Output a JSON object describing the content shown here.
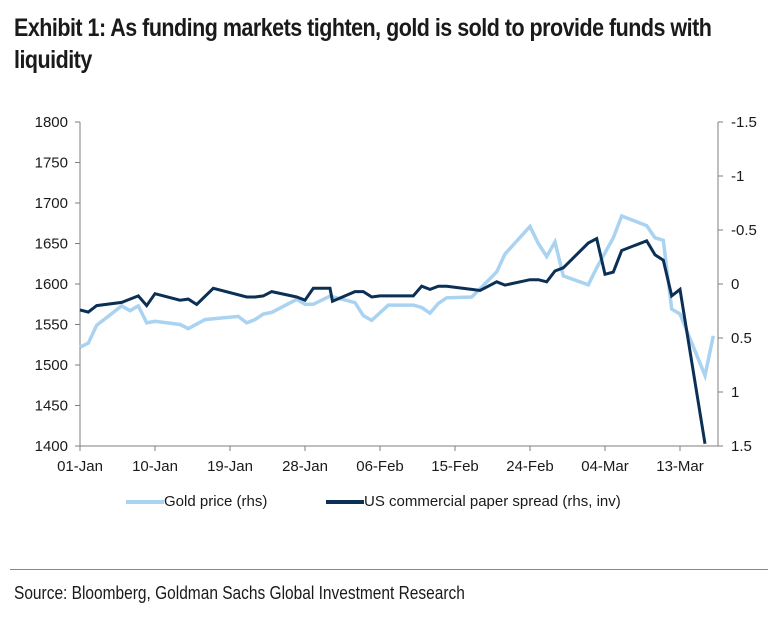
{
  "title": "Exhibit 1: As funding markets tighten, gold is sold to provide funds with liquidity",
  "source": "Source: Bloomberg, Goldman Sachs Global Investment Research",
  "colors": {
    "gold": "#a9d3f1",
    "cp": "#0b2f55",
    "axis": "#7f7f7f"
  },
  "legend": [
    {
      "label": "Gold price (rhs)",
      "color": "#a9d3f1"
    },
    {
      "label": "US commercial paper spread (rhs, inv)",
      "color": "#0b2f55"
    }
  ],
  "chart_data": {
    "type": "line",
    "title": "Exhibit 1: As funding markets tighten, gold is sold to provide funds with liquidity",
    "xlabel": "",
    "ylabel_left": "",
    "ylabel_right": "",
    "x_tick_labels": [
      "01-Jan",
      "10-Jan",
      "19-Jan",
      "28-Jan",
      "06-Feb",
      "15-Feb",
      "24-Feb",
      "04-Mar",
      "13-Mar"
    ],
    "x_range_days_from_jan1": [
      0,
      76.5
    ],
    "left_axis": {
      "ylim": [
        1400,
        1800
      ],
      "ticks": [
        "1800",
        "1750",
        "1700",
        "1650",
        "1600",
        "1550",
        "1500",
        "1450",
        "1400"
      ]
    },
    "right_axis": {
      "ylim": [
        -1.5,
        1.5
      ],
      "inverted": true,
      "ticks": [
        "-1.5",
        "-1",
        "-0.5",
        "0",
        "0.5",
        "1",
        "1.5"
      ]
    },
    "grid": false,
    "legend_position": "bottom",
    "series": [
      {
        "name": "Gold price (rhs)",
        "axis": "left",
        "points": [
          [
            0,
            1522
          ],
          [
            1,
            1527
          ],
          [
            2,
            1549
          ],
          [
            5,
            1573
          ],
          [
            6,
            1567
          ],
          [
            7,
            1573
          ],
          [
            8,
            1552
          ],
          [
            9,
            1554
          ],
          [
            12,
            1550
          ],
          [
            13,
            1545
          ],
          [
            15,
            1556
          ],
          [
            16,
            1557
          ],
          [
            19,
            1560
          ],
          [
            20,
            1552
          ],
          [
            21,
            1556
          ],
          [
            22,
            1563
          ],
          [
            23,
            1565
          ],
          [
            26,
            1581
          ],
          [
            27,
            1575
          ],
          [
            28,
            1575
          ],
          [
            30,
            1585
          ],
          [
            33,
            1577
          ],
          [
            34,
            1561
          ],
          [
            35,
            1555
          ],
          [
            37,
            1574
          ],
          [
            40,
            1574
          ],
          [
            41,
            1571
          ],
          [
            42,
            1564
          ],
          [
            43,
            1576
          ],
          [
            44,
            1583
          ],
          [
            47,
            1584
          ],
          [
            48,
            1594
          ],
          [
            50,
            1615
          ],
          [
            51,
            1637
          ],
          [
            54,
            1671
          ],
          [
            55,
            1650
          ],
          [
            56,
            1634
          ],
          [
            57,
            1652
          ],
          [
            58,
            1610
          ],
          [
            61,
            1599
          ],
          [
            62,
            1620
          ],
          [
            64,
            1657
          ],
          [
            65,
            1684
          ],
          [
            68,
            1672
          ],
          [
            69,
            1657
          ],
          [
            70,
            1654
          ],
          [
            71,
            1569
          ],
          [
            72,
            1563
          ],
          [
            75,
            1487
          ],
          [
            76,
            1536
          ]
        ]
      },
      {
        "name": "US commercial paper spread (rhs, inv)",
        "axis": "right",
        "points": [
          [
            0,
            0.24
          ],
          [
            1,
            0.26
          ],
          [
            2,
            0.2
          ],
          [
            5,
            0.17
          ],
          [
            7,
            0.11
          ],
          [
            8,
            0.2
          ],
          [
            9,
            0.09
          ],
          [
            12,
            0.15
          ],
          [
            13,
            0.14
          ],
          [
            14,
            0.19
          ],
          [
            16,
            0.04
          ],
          [
            20,
            0.12
          ],
          [
            21,
            0.12
          ],
          [
            22,
            0.11
          ],
          [
            23,
            0.07
          ],
          [
            26,
            0.12
          ],
          [
            27,
            0.15
          ],
          [
            28,
            0.04
          ],
          [
            30,
            0.04
          ],
          [
            30.3,
            0.16
          ],
          [
            33,
            0.07
          ],
          [
            34,
            0.07
          ],
          [
            35,
            0.12
          ],
          [
            36,
            0.11
          ],
          [
            40,
            0.11
          ],
          [
            41,
            0.02
          ],
          [
            42,
            0.05
          ],
          [
            43,
            0.02
          ],
          [
            44,
            0.02
          ],
          [
            47,
            0.05
          ],
          [
            48,
            0.06
          ],
          [
            49,
            0.02
          ],
          [
            50,
            -0.02
          ],
          [
            51,
            0.01
          ],
          [
            54,
            -0.04
          ],
          [
            55,
            -0.04
          ],
          [
            56,
            -0.02
          ],
          [
            57,
            -0.12
          ],
          [
            58,
            -0.15
          ],
          [
            61,
            -0.38
          ],
          [
            62,
            -0.42
          ],
          [
            63,
            -0.09
          ],
          [
            64,
            -0.11
          ],
          [
            65,
            -0.31
          ],
          [
            68,
            -0.4
          ],
          [
            69,
            -0.27
          ],
          [
            70,
            -0.22
          ],
          [
            71,
            0.11
          ],
          [
            72,
            0.05
          ],
          [
            75,
            1.48
          ]
        ]
      }
    ]
  }
}
